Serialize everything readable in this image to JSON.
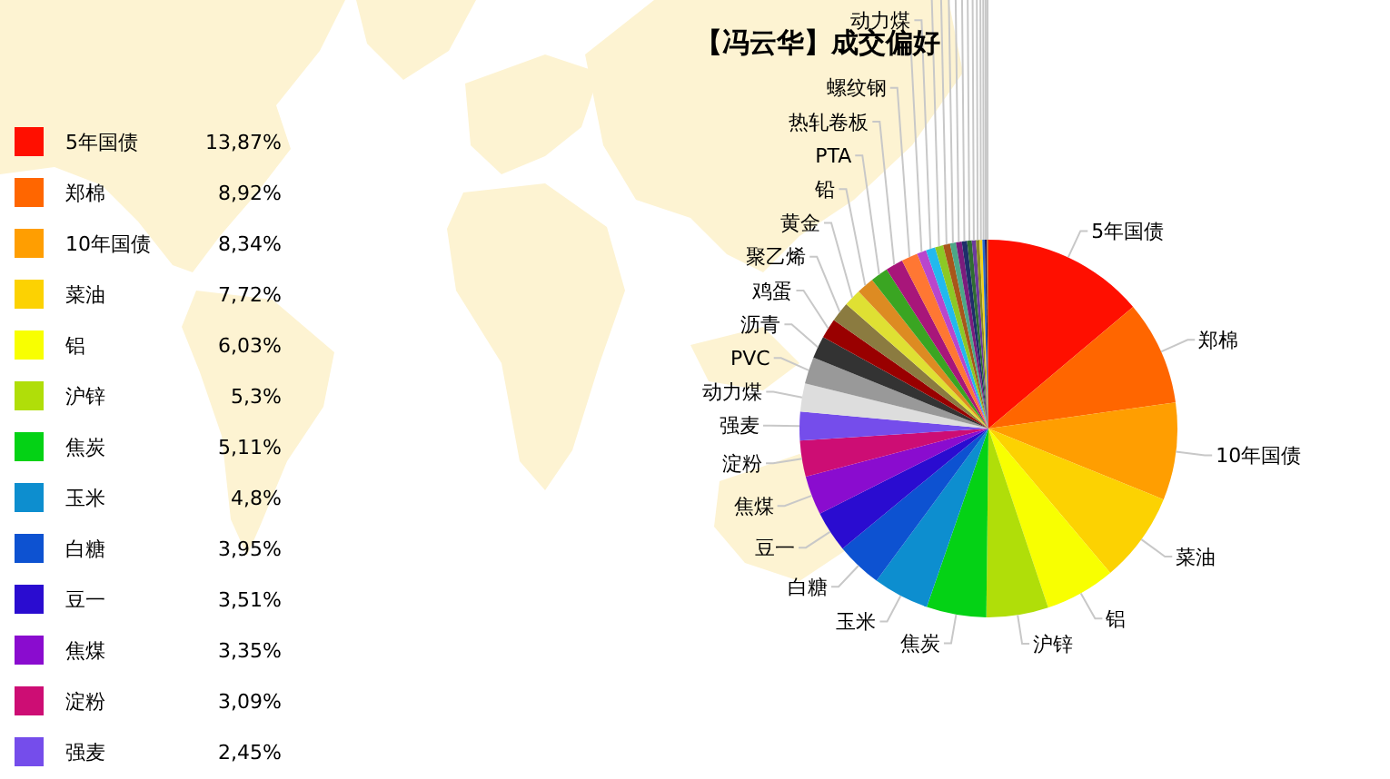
{
  "chart_data": {
    "type": "pie",
    "title": "【冯云华】成交偏好",
    "categories": [
      "5年国债",
      "郑棉",
      "10年国债",
      "菜油",
      "铝",
      "沪锌",
      "焦炭",
      "玉米",
      "白糖",
      "豆一",
      "焦煤",
      "淀粉",
      "强麦",
      "动力煤",
      "PVC",
      "沥青",
      "鸡蛋",
      "聚乙烯",
      "黄金",
      "铅",
      "PTA",
      "热轧卷板",
      "螺纹钢",
      null,
      "动力煤",
      null,
      null,
      null,
      null,
      null,
      null,
      null,
      null,
      null,
      null,
      null,
      null
    ],
    "values": [
      13.87,
      8.92,
      8.34,
      7.72,
      6.03,
      5.3,
      5.11,
      4.8,
      3.95,
      3.51,
      3.35,
      3.09,
      2.45,
      2.4,
      2.3,
      1.9,
      1.7,
      1.7,
      1.5,
      1.5,
      1.5,
      1.5,
      1.4,
      0.8,
      0.8,
      0.7,
      0.6,
      0.5,
      0.5,
      0.45,
      0.4,
      0.35,
      0.3,
      0.25,
      0.2,
      0.17,
      0.14
    ],
    "colors": [
      "#ff0f00",
      "#ff6600",
      "#ff9e01",
      "#fcd202",
      "#f8ff01",
      "#b0de09",
      "#04d215",
      "#0d8ecf",
      "#0d52d1",
      "#2a0cd0",
      "#8a0ccf",
      "#cd0d74",
      "#754deb",
      "#dddddd",
      "#999999",
      "#333333",
      "#990000",
      "#8b7b40",
      "#dfe033",
      "#dd8b22",
      "#3aa522",
      "#a8167a",
      "#ff7733",
      "#b946cc",
      "#22b9ee",
      "#8cc925",
      "#a8561a",
      "#4ca888",
      "#7b1c7d",
      "#1e2f6a",
      "#2f6d33",
      "#6b3a9c",
      "#8c8c24",
      "#f2d21c",
      "#2468cc",
      "#1a1a66",
      "#cc6622"
    ],
    "value_labels": [
      "13,87%",
      "8,92%",
      "8,34%",
      "7,72%",
      "6,03%",
      "5,3%",
      "5,11%",
      "4,8%",
      "3,95%",
      "3,51%",
      "3,35%",
      "3,09%",
      "2,45%",
      null,
      null,
      null,
      null,
      null,
      null,
      null,
      null,
      null,
      null,
      null,
      null,
      null,
      null,
      null,
      null,
      null,
      null,
      null,
      null,
      null,
      null,
      null,
      null
    ],
    "legend": "left"
  }
}
